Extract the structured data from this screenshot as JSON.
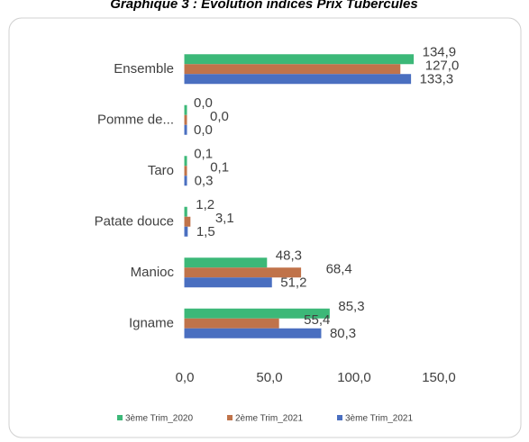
{
  "chart_data": {
    "type": "hbar",
    "title": "Graphique 3 : Evolution indices Prix Tubercules",
    "categories": [
      "Ensemble",
      "Pomme de...",
      "Taro",
      "Patate douce",
      "Manioc",
      "Igname"
    ],
    "series": [
      {
        "name": "3ème Trim_2020",
        "color": "#3cb878",
        "values": [
          134.9,
          0,
          0.1,
          1.2,
          48.3,
          85.3
        ],
        "value_labels": [
          "134,9",
          "0,0",
          "0,1",
          "1,2",
          "48,3",
          "85,3"
        ]
      },
      {
        "name": "2ème Trim_2021",
        "color": "#c0734a",
        "values": [
          127.0,
          0,
          0.1,
          3.1,
          68.4,
          55.4
        ],
        "value_labels": [
          "127,0",
          "0,0",
          "0,1",
          "3,1",
          "68,4",
          "55,4"
        ]
      },
      {
        "name": "3ème Trim_2021",
        "color": "#4a6fc0",
        "values": [
          133.3,
          0,
          0.3,
          1.5,
          51.2,
          80.3
        ],
        "value_labels": [
          "133,3",
          "0,0",
          "0,3",
          "1,5",
          "51,2",
          "80,3"
        ]
      }
    ],
    "xlim": [
      0,
      150
    ],
    "xticks": [
      {
        "value": 0,
        "label": "0,0"
      },
      {
        "value": 50,
        "label": "50,0"
      },
      {
        "value": 100,
        "label": "100,0"
      },
      {
        "value": 150,
        "label": "150,0"
      }
    ]
  }
}
